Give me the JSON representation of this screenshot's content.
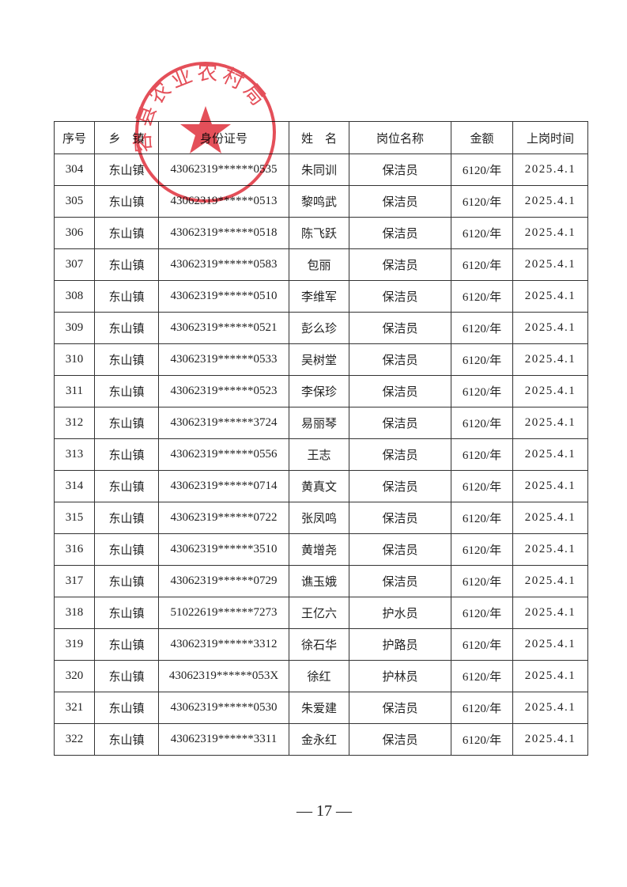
{
  "stamp": {
    "text": "容县农业农村局"
  },
  "table": {
    "header": [
      "序号",
      "乡　镇",
      "身份证号",
      "姓　名",
      "岗位名称",
      "金额",
      "上岗时间"
    ],
    "rows": [
      [
        "304",
        "东山镇",
        "43062319******0535",
        "朱同训",
        "保洁员",
        "6120/年",
        "2025.4.1"
      ],
      [
        "305",
        "东山镇",
        "43062319******0513",
        "黎鸣武",
        "保洁员",
        "6120/年",
        "2025.4.1"
      ],
      [
        "306",
        "东山镇",
        "43062319******0518",
        "陈飞跃",
        "保洁员",
        "6120/年",
        "2025.4.1"
      ],
      [
        "307",
        "东山镇",
        "43062319******0583",
        "包丽",
        "保洁员",
        "6120/年",
        "2025.4.1"
      ],
      [
        "308",
        "东山镇",
        "43062319******0510",
        "李维军",
        "保洁员",
        "6120/年",
        "2025.4.1"
      ],
      [
        "309",
        "东山镇",
        "43062319******0521",
        "彭么珍",
        "保洁员",
        "6120/年",
        "2025.4.1"
      ],
      [
        "310",
        "东山镇",
        "43062319******0533",
        "吴树堂",
        "保洁员",
        "6120/年",
        "2025.4.1"
      ],
      [
        "311",
        "东山镇",
        "43062319******0523",
        "李保珍",
        "保洁员",
        "6120/年",
        "2025.4.1"
      ],
      [
        "312",
        "东山镇",
        "43062319******3724",
        "易丽琴",
        "保洁员",
        "6120/年",
        "2025.4.1"
      ],
      [
        "313",
        "东山镇",
        "43062319******0556",
        "王志",
        "保洁员",
        "6120/年",
        "2025.4.1"
      ],
      [
        "314",
        "东山镇",
        "43062319******0714",
        "黄真文",
        "保洁员",
        "6120/年",
        "2025.4.1"
      ],
      [
        "315",
        "东山镇",
        "43062319******0722",
        "张凤鸣",
        "保洁员",
        "6120/年",
        "2025.4.1"
      ],
      [
        "316",
        "东山镇",
        "43062319******3510",
        "黄增尧",
        "保洁员",
        "6120/年",
        "2025.4.1"
      ],
      [
        "317",
        "东山镇",
        "43062319******0729",
        "谯玉娥",
        "保洁员",
        "6120/年",
        "2025.4.1"
      ],
      [
        "318",
        "东山镇",
        "51022619******7273",
        "王亿六",
        "护水员",
        "6120/年",
        "2025.4.1"
      ],
      [
        "319",
        "东山镇",
        "43062319******3312",
        "徐石华",
        "护路员",
        "6120/年",
        "2025.4.1"
      ],
      [
        "320",
        "东山镇",
        "43062319******053X",
        "徐红",
        "护林员",
        "6120/年",
        "2025.4.1"
      ],
      [
        "321",
        "东山镇",
        "43062319******0530",
        "朱爱建",
        "保洁员",
        "6120/年",
        "2025.4.1"
      ],
      [
        "322",
        "东山镇",
        "43062319******3311",
        "金永红",
        "保洁员",
        "6120/年",
        "2025.4.1"
      ]
    ]
  },
  "footer": {
    "page_number": "— 17 —"
  }
}
